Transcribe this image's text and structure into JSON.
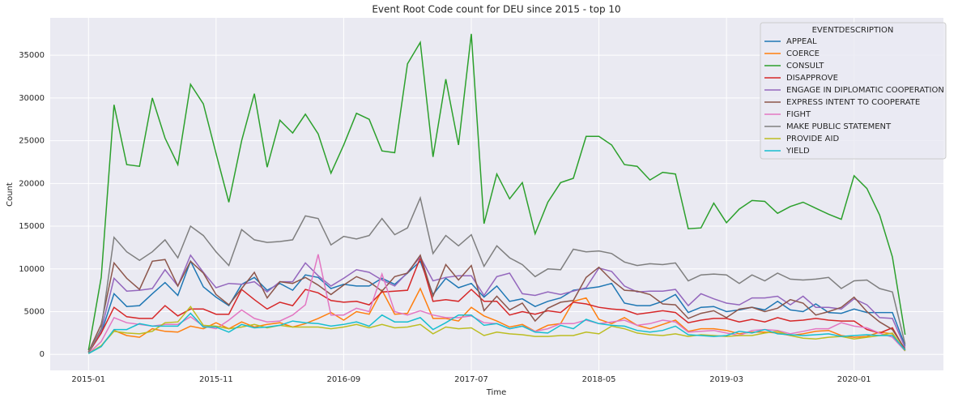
{
  "chart_data": {
    "type": "line",
    "title": "Event Root Code count for DEU since 2015 - top 10",
    "xlabel": "Time",
    "ylabel": "Count",
    "legend_title": "EVENTDESCRIPTION",
    "legend_position": "upper right",
    "grid": true,
    "x": [
      "2015-01",
      "2015-02",
      "2015-03",
      "2015-04",
      "2015-05",
      "2015-06",
      "2015-07",
      "2015-08",
      "2015-09",
      "2015-10",
      "2015-11",
      "2015-12",
      "2016-01",
      "2016-02",
      "2016-03",
      "2016-04",
      "2016-05",
      "2016-06",
      "2016-07",
      "2016-08",
      "2016-09",
      "2016-10",
      "2016-11",
      "2016-12",
      "2017-01",
      "2017-02",
      "2017-03",
      "2017-04",
      "2017-05",
      "2017-06",
      "2017-07",
      "2017-08",
      "2017-09",
      "2017-10",
      "2017-11",
      "2017-12",
      "2018-01",
      "2018-02",
      "2018-03",
      "2018-04",
      "2018-05",
      "2018-06",
      "2018-07",
      "2018-08",
      "2018-09",
      "2018-10",
      "2018-11",
      "2018-12",
      "2019-01",
      "2019-02",
      "2019-03",
      "2019-04",
      "2019-05",
      "2019-06",
      "2019-07",
      "2019-08",
      "2019-09",
      "2019-10",
      "2019-11",
      "2019-12",
      "2020-01",
      "2020-02",
      "2020-03",
      "2020-04",
      "2020-05"
    ],
    "xlim": [
      "2014-10",
      "2020-08"
    ],
    "xticks": [
      "2015-01",
      "2015-11",
      "2016-09",
      "2017-07",
      "2018-05",
      "2019-03",
      "2020-01"
    ],
    "ylim": [
      -1875,
      39375
    ],
    "yticks": [
      0,
      5000,
      10000,
      15000,
      20000,
      25000,
      30000,
      35000
    ],
    "series": [
      {
        "name": "APPEAL",
        "color": "#1f77b4",
        "values": [
          200,
          2500,
          7100,
          5600,
          5700,
          7100,
          8400,
          6900,
          10900,
          7900,
          6700,
          5700,
          8200,
          9000,
          7500,
          8300,
          7500,
          9300,
          9000,
          7700,
          8200,
          8000,
          8000,
          8900,
          8200,
          9500,
          10900,
          7000,
          8900,
          7800,
          8300,
          6700,
          8000,
          6200,
          6500,
          5600,
          6200,
          6600,
          7500,
          7700,
          7900,
          8300,
          6000,
          5700,
          5700,
          6200,
          7000,
          4900,
          5500,
          5600,
          5000,
          5200,
          5500,
          5200,
          6200,
          5200,
          5000,
          5900,
          4900,
          4800,
          5300,
          4900,
          4900,
          4900,
          1000
        ]
      },
      {
        "name": "COERCE",
        "color": "#ff7f0e",
        "values": [
          100,
          1000,
          2800,
          2200,
          2000,
          3000,
          2700,
          2600,
          3300,
          3000,
          3700,
          3000,
          3800,
          3200,
          3500,
          3700,
          3200,
          3600,
          4200,
          4900,
          4000,
          5000,
          4700,
          7500,
          4700,
          4800,
          7700,
          4200,
          4200,
          3900,
          5500,
          4500,
          3900,
          3200,
          3500,
          2700,
          3400,
          3600,
          6200,
          6600,
          4100,
          3600,
          4300,
          3400,
          3000,
          3500,
          4000,
          2700,
          3000,
          3000,
          2800,
          2400,
          2600,
          2600,
          2500,
          2200,
          2400,
          2700,
          2800,
          2200,
          2000,
          2100,
          2600,
          2400,
          400
        ]
      },
      {
        "name": "CONSULT",
        "color": "#2ca02c",
        "values": [
          500,
          9000,
          29200,
          22200,
          22000,
          30000,
          25300,
          22200,
          31600,
          29300,
          23500,
          17800,
          25000,
          30500,
          21900,
          27400,
          25900,
          28100,
          25800,
          21200,
          24500,
          28200,
          27500,
          23800,
          23600,
          34000,
          36500,
          23100,
          32200,
          24500,
          37500,
          15300,
          21100,
          18200,
          20100,
          14100,
          17800,
          20100,
          20600,
          25500,
          25500,
          24500,
          22200,
          22000,
          20400,
          21300,
          21100,
          14700,
          14800,
          17700,
          15400,
          17000,
          18000,
          17900,
          16500,
          17300,
          17800,
          17100,
          16400,
          15800,
          20900,
          19400,
          16300,
          11400,
          2300
        ]
      },
      {
        "name": "DISAPPROVE",
        "color": "#d62728",
        "values": [
          200,
          2500,
          5500,
          4400,
          4200,
          4200,
          5700,
          4500,
          5300,
          5300,
          4700,
          4700,
          7600,
          6400,
          5300,
          6100,
          5700,
          7600,
          7200,
          6300,
          6100,
          6200,
          5800,
          7300,
          7400,
          7500,
          11300,
          6200,
          6400,
          6200,
          7600,
          6200,
          6200,
          4600,
          5000,
          4700,
          5100,
          4900,
          6100,
          5900,
          5500,
          5300,
          5200,
          4700,
          4900,
          5100,
          4900,
          3700,
          4000,
          4200,
          4200,
          3800,
          4100,
          3800,
          4300,
          3900,
          4000,
          4200,
          4000,
          3900,
          3900,
          2900,
          2500,
          3100,
          500
        ]
      },
      {
        "name": "ENGAGE IN DIPLOMATIC COOPERATION",
        "color": "#9467bd",
        "values": [
          300,
          2800,
          8900,
          7400,
          7500,
          7700,
          9900,
          8000,
          11600,
          9600,
          7800,
          8300,
          8200,
          8500,
          7300,
          8500,
          8500,
          10700,
          9200,
          8000,
          8900,
          9900,
          9600,
          8700,
          8000,
          9600,
          11400,
          8600,
          9000,
          9200,
          9200,
          6900,
          9100,
          9500,
          7100,
          6900,
          7300,
          7000,
          7400,
          7800,
          10100,
          9700,
          8000,
          7300,
          7400,
          7400,
          7600,
          5700,
          7100,
          6500,
          6000,
          5800,
          6600,
          6600,
          6800,
          5800,
          6800,
          5500,
          5500,
          5300,
          6500,
          5800,
          4300,
          4200,
          800
        ]
      },
      {
        "name": "EXPRESS INTENT TO COOPERATE",
        "color": "#8c564b",
        "values": [
          300,
          3500,
          10700,
          8900,
          7600,
          10900,
          11100,
          8000,
          10900,
          9500,
          7000,
          5800,
          7700,
          9600,
          6600,
          8500,
          8300,
          9000,
          8100,
          7000,
          8100,
          9100,
          8500,
          7400,
          9100,
          9500,
          11600,
          6800,
          10500,
          8700,
          10400,
          5100,
          6800,
          5200,
          6000,
          3900,
          5400,
          6100,
          6300,
          9000,
          10200,
          8700,
          7500,
          7400,
          7000,
          5900,
          5800,
          4200,
          4800,
          5100,
          4300,
          5300,
          5500,
          5000,
          5400,
          6400,
          6000,
          4600,
          5000,
          5500,
          6700,
          5000,
          3800,
          2900,
          600
        ]
      },
      {
        "name": "FIGHT",
        "color": "#e377c2",
        "values": [
          100,
          1500,
          4300,
          3700,
          3500,
          3300,
          3500,
          3500,
          4400,
          3300,
          3000,
          4000,
          5200,
          4200,
          3800,
          3900,
          4600,
          5800,
          11700,
          4600,
          4600,
          5400,
          5000,
          9400,
          5000,
          4600,
          5100,
          4600,
          4300,
          4300,
          4500,
          3700,
          3600,
          3000,
          3300,
          2700,
          3000,
          3600,
          3600,
          4000,
          3600,
          3800,
          4000,
          3400,
          3600,
          4000,
          3800,
          2600,
          2700,
          2800,
          2500,
          2200,
          2800,
          2900,
          2800,
          2400,
          2700,
          3000,
          3000,
          3700,
          3300,
          3100,
          2500,
          2000,
          400
        ]
      },
      {
        "name": "MAKE PUBLIC STATEMENT",
        "color": "#7f7f7f",
        "values": [
          200,
          3000,
          13700,
          12000,
          11000,
          12000,
          13400,
          11300,
          15000,
          13900,
          12000,
          10400,
          14600,
          13400,
          13100,
          13200,
          13400,
          16200,
          15900,
          12800,
          13800,
          13500,
          13900,
          15900,
          14000,
          14800,
          18300,
          11800,
          13900,
          12700,
          14000,
          10300,
          12700,
          11300,
          10500,
          9100,
          10000,
          9900,
          12300,
          12000,
          12100,
          11800,
          10800,
          10400,
          10600,
          10500,
          10700,
          8600,
          9300,
          9400,
          9300,
          8300,
          9300,
          8600,
          9500,
          8800,
          8700,
          8800,
          9000,
          7700,
          8600,
          8700,
          7700,
          7300,
          1200
        ]
      },
      {
        "name": "PROVIDE AID",
        "color": "#bcbd22",
        "values": [
          100,
          1000,
          2700,
          2500,
          2400,
          2700,
          3700,
          3800,
          5600,
          3400,
          3300,
          3000,
          3200,
          3500,
          3100,
          3400,
          3200,
          3200,
          3200,
          3000,
          3200,
          3500,
          3100,
          3500,
          3100,
          3200,
          3500,
          2400,
          3200,
          3000,
          3100,
          2200,
          2600,
          2400,
          2300,
          2100,
          2100,
          2200,
          2200,
          2600,
          2400,
          3300,
          3000,
          2500,
          2300,
          2200,
          2400,
          2100,
          2300,
          2200,
          2100,
          2200,
          2200,
          2500,
          2700,
          2200,
          1900,
          1800,
          2000,
          2100,
          1800,
          2000,
          2200,
          2500,
          400
        ]
      },
      {
        "name": "YIELD",
        "color": "#17becf",
        "values": [
          100,
          900,
          2900,
          2900,
          3600,
          3300,
          3300,
          3300,
          4800,
          3200,
          3200,
          2600,
          3500,
          3100,
          3200,
          3400,
          3900,
          3700,
          3600,
          3300,
          3500,
          3800,
          3300,
          4600,
          3800,
          3800,
          4300,
          2900,
          3700,
          4600,
          4600,
          3400,
          3600,
          3000,
          3300,
          2600,
          2500,
          3400,
          3000,
          4100,
          3600,
          3400,
          3300,
          2800,
          2600,
          2800,
          3300,
          2300,
          2200,
          2100,
          2200,
          2700,
          2500,
          2900,
          2400,
          2300,
          2200,
          2300,
          2400,
          2100,
          2200,
          2300,
          2200,
          2200,
          500
        ]
      }
    ]
  }
}
